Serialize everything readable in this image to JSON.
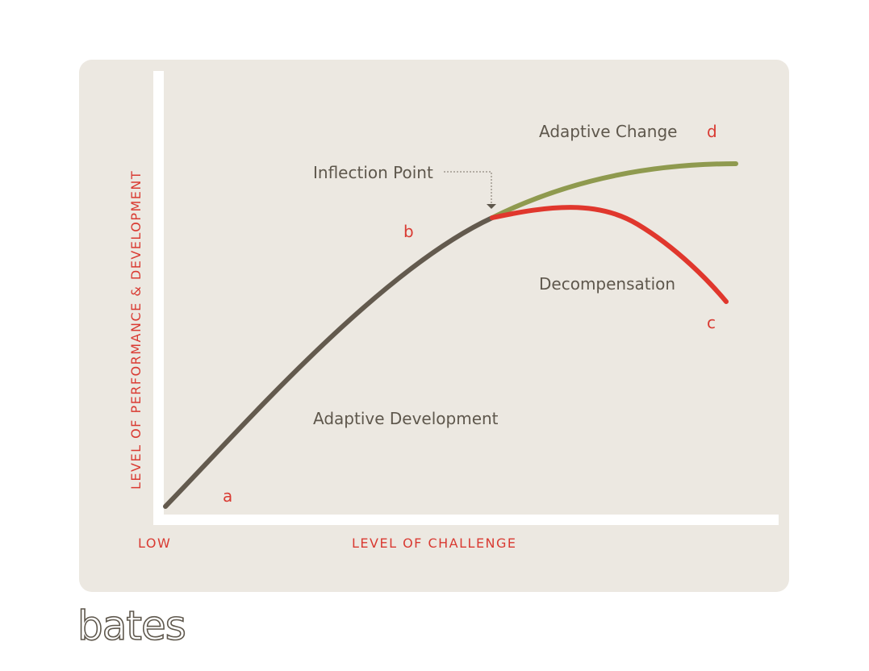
{
  "labels": {
    "adaptive_change": "Adaptive Change",
    "d": "d",
    "inflection_point": "Inflection Point",
    "b": "b",
    "decompensation": "Decompensation",
    "c": "c",
    "adaptive_development": "Adaptive Development",
    "a": "a"
  },
  "axes": {
    "y_label": "LEVEL OF PERFORMANCE & DEVELOPMENT",
    "low": "LOW",
    "x_label": "LEVEL OF CHALLENGE"
  },
  "logo": "bates"
}
